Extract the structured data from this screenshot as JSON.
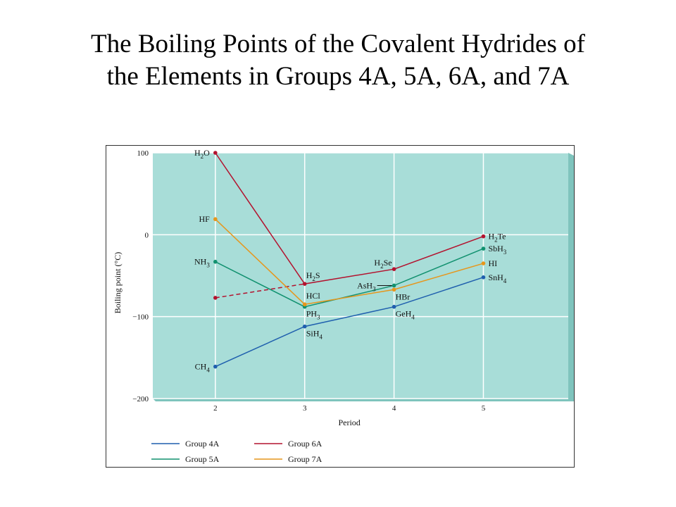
{
  "slide": {
    "title_line1": "The Boiling Points of the Covalent Hydrides of",
    "title_line2": "the Elements in Groups 4A, 5A, 6A, and 7A"
  },
  "colors": {
    "plot_background": "#a8ddd8",
    "plot_shadow": "#7fc4bd",
    "gridline": "#ffffff",
    "group_4a": "#1f5fae",
    "group_5a": "#11916f",
    "group_6a": "#b3122e",
    "group_7a": "#e6961c"
  },
  "chart_data": {
    "type": "line",
    "title": "",
    "xlabel": "Period",
    "ylabel": "Boiling point (°C)",
    "x": [
      2,
      3,
      4,
      5
    ],
    "xlim": [
      1.3,
      5.95
    ],
    "ylim": [
      -200,
      100
    ],
    "x_ticks": [
      "2",
      "3",
      "4",
      "5"
    ],
    "y_ticks": [
      {
        "value": 100,
        "label": "100"
      },
      {
        "value": 0,
        "label": "0"
      },
      {
        "value": -100,
        "label": "−100"
      },
      {
        "value": -200,
        "label": "−200"
      }
    ],
    "grid": true,
    "legend_position": "bottom",
    "series": [
      {
        "name": "Group 4A",
        "color_key": "group_4a",
        "values": [
          -161,
          -112,
          -88,
          -52
        ],
        "compounds": [
          "CH4",
          "SiH4",
          "GeH4",
          "SnH4"
        ]
      },
      {
        "name": "Group 5A",
        "color_key": "group_5a",
        "values": [
          -33,
          -88,
          -62,
          -17
        ],
        "compounds": [
          "NH3",
          "PH3",
          "AsH3",
          "SbH3"
        ]
      },
      {
        "name": "Group 6A",
        "color_key": "group_6a",
        "values": [
          100,
          -60,
          -42,
          -2
        ],
        "compounds": [
          "H2O",
          "H2S",
          "H2Se",
          "H2Te"
        ],
        "extrapolated_period2_value": -77
      },
      {
        "name": "Group 7A",
        "color_key": "group_7a",
        "values": [
          19,
          -85,
          -67,
          -35
        ],
        "compounds": [
          "HF",
          "HCl",
          "HBr",
          "HI"
        ]
      }
    ],
    "point_labels": [
      {
        "id": "h2o",
        "base": "H",
        "sub": "2",
        "rest": "O",
        "x": 2,
        "y": 100,
        "side": "left"
      },
      {
        "id": "hf",
        "base": "HF",
        "sub": "",
        "rest": "",
        "x": 2,
        "y": 19,
        "side": "left"
      },
      {
        "id": "nh3",
        "base": "NH",
        "sub": "3",
        "rest": "",
        "x": 2,
        "y": -33,
        "side": "left"
      },
      {
        "id": "ch4",
        "base": "CH",
        "sub": "4",
        "rest": "",
        "x": 2,
        "y": -161,
        "side": "left"
      },
      {
        "id": "h2s",
        "base": "H",
        "sub": "2",
        "rest": "S",
        "x": 3,
        "y": -60,
        "side": "above-right"
      },
      {
        "id": "hcl",
        "base": "HCl",
        "sub": "",
        "rest": "",
        "x": 3,
        "y": -85,
        "side": "above-right"
      },
      {
        "id": "ph3",
        "base": "PH",
        "sub": "3",
        "rest": "",
        "x": 3,
        "y": -88,
        "side": "below-right"
      },
      {
        "id": "sih4",
        "base": "SiH",
        "sub": "4",
        "rest": "",
        "x": 3,
        "y": -112,
        "side": "below-right"
      },
      {
        "id": "h2se",
        "base": "H",
        "sub": "2",
        "rest": "Se",
        "x": 4,
        "y": -42,
        "side": "above-left"
      },
      {
        "id": "ash3",
        "base": "AsH",
        "sub": "3",
        "rest": "",
        "x": 4,
        "y": -62,
        "side": "left-leader"
      },
      {
        "id": "hbr",
        "base": "HBr",
        "sub": "",
        "rest": "",
        "x": 4,
        "y": -67,
        "side": "below-right"
      },
      {
        "id": "geh4",
        "base": "GeH",
        "sub": "4",
        "rest": "",
        "x": 4,
        "y": -88,
        "side": "below-right"
      },
      {
        "id": "h2te",
        "base": "H",
        "sub": "2",
        "rest": "Te",
        "x": 5,
        "y": -2,
        "side": "right"
      },
      {
        "id": "sbh3",
        "base": "SbH",
        "sub": "3",
        "rest": "",
        "x": 5,
        "y": -17,
        "side": "right"
      },
      {
        "id": "hi",
        "base": "HI",
        "sub": "",
        "rest": "",
        "x": 5,
        "y": -35,
        "side": "right"
      },
      {
        "id": "snh4",
        "base": "SnH",
        "sub": "4",
        "rest": "",
        "x": 5,
        "y": -52,
        "side": "right"
      }
    ],
    "legend": [
      {
        "label": "Group 4A",
        "color_key": "group_4a"
      },
      {
        "label": "Group 6A",
        "color_key": "group_6a"
      },
      {
        "label": "Group 5A",
        "color_key": "group_5a"
      },
      {
        "label": "Group 7A",
        "color_key": "group_7a"
      }
    ]
  }
}
